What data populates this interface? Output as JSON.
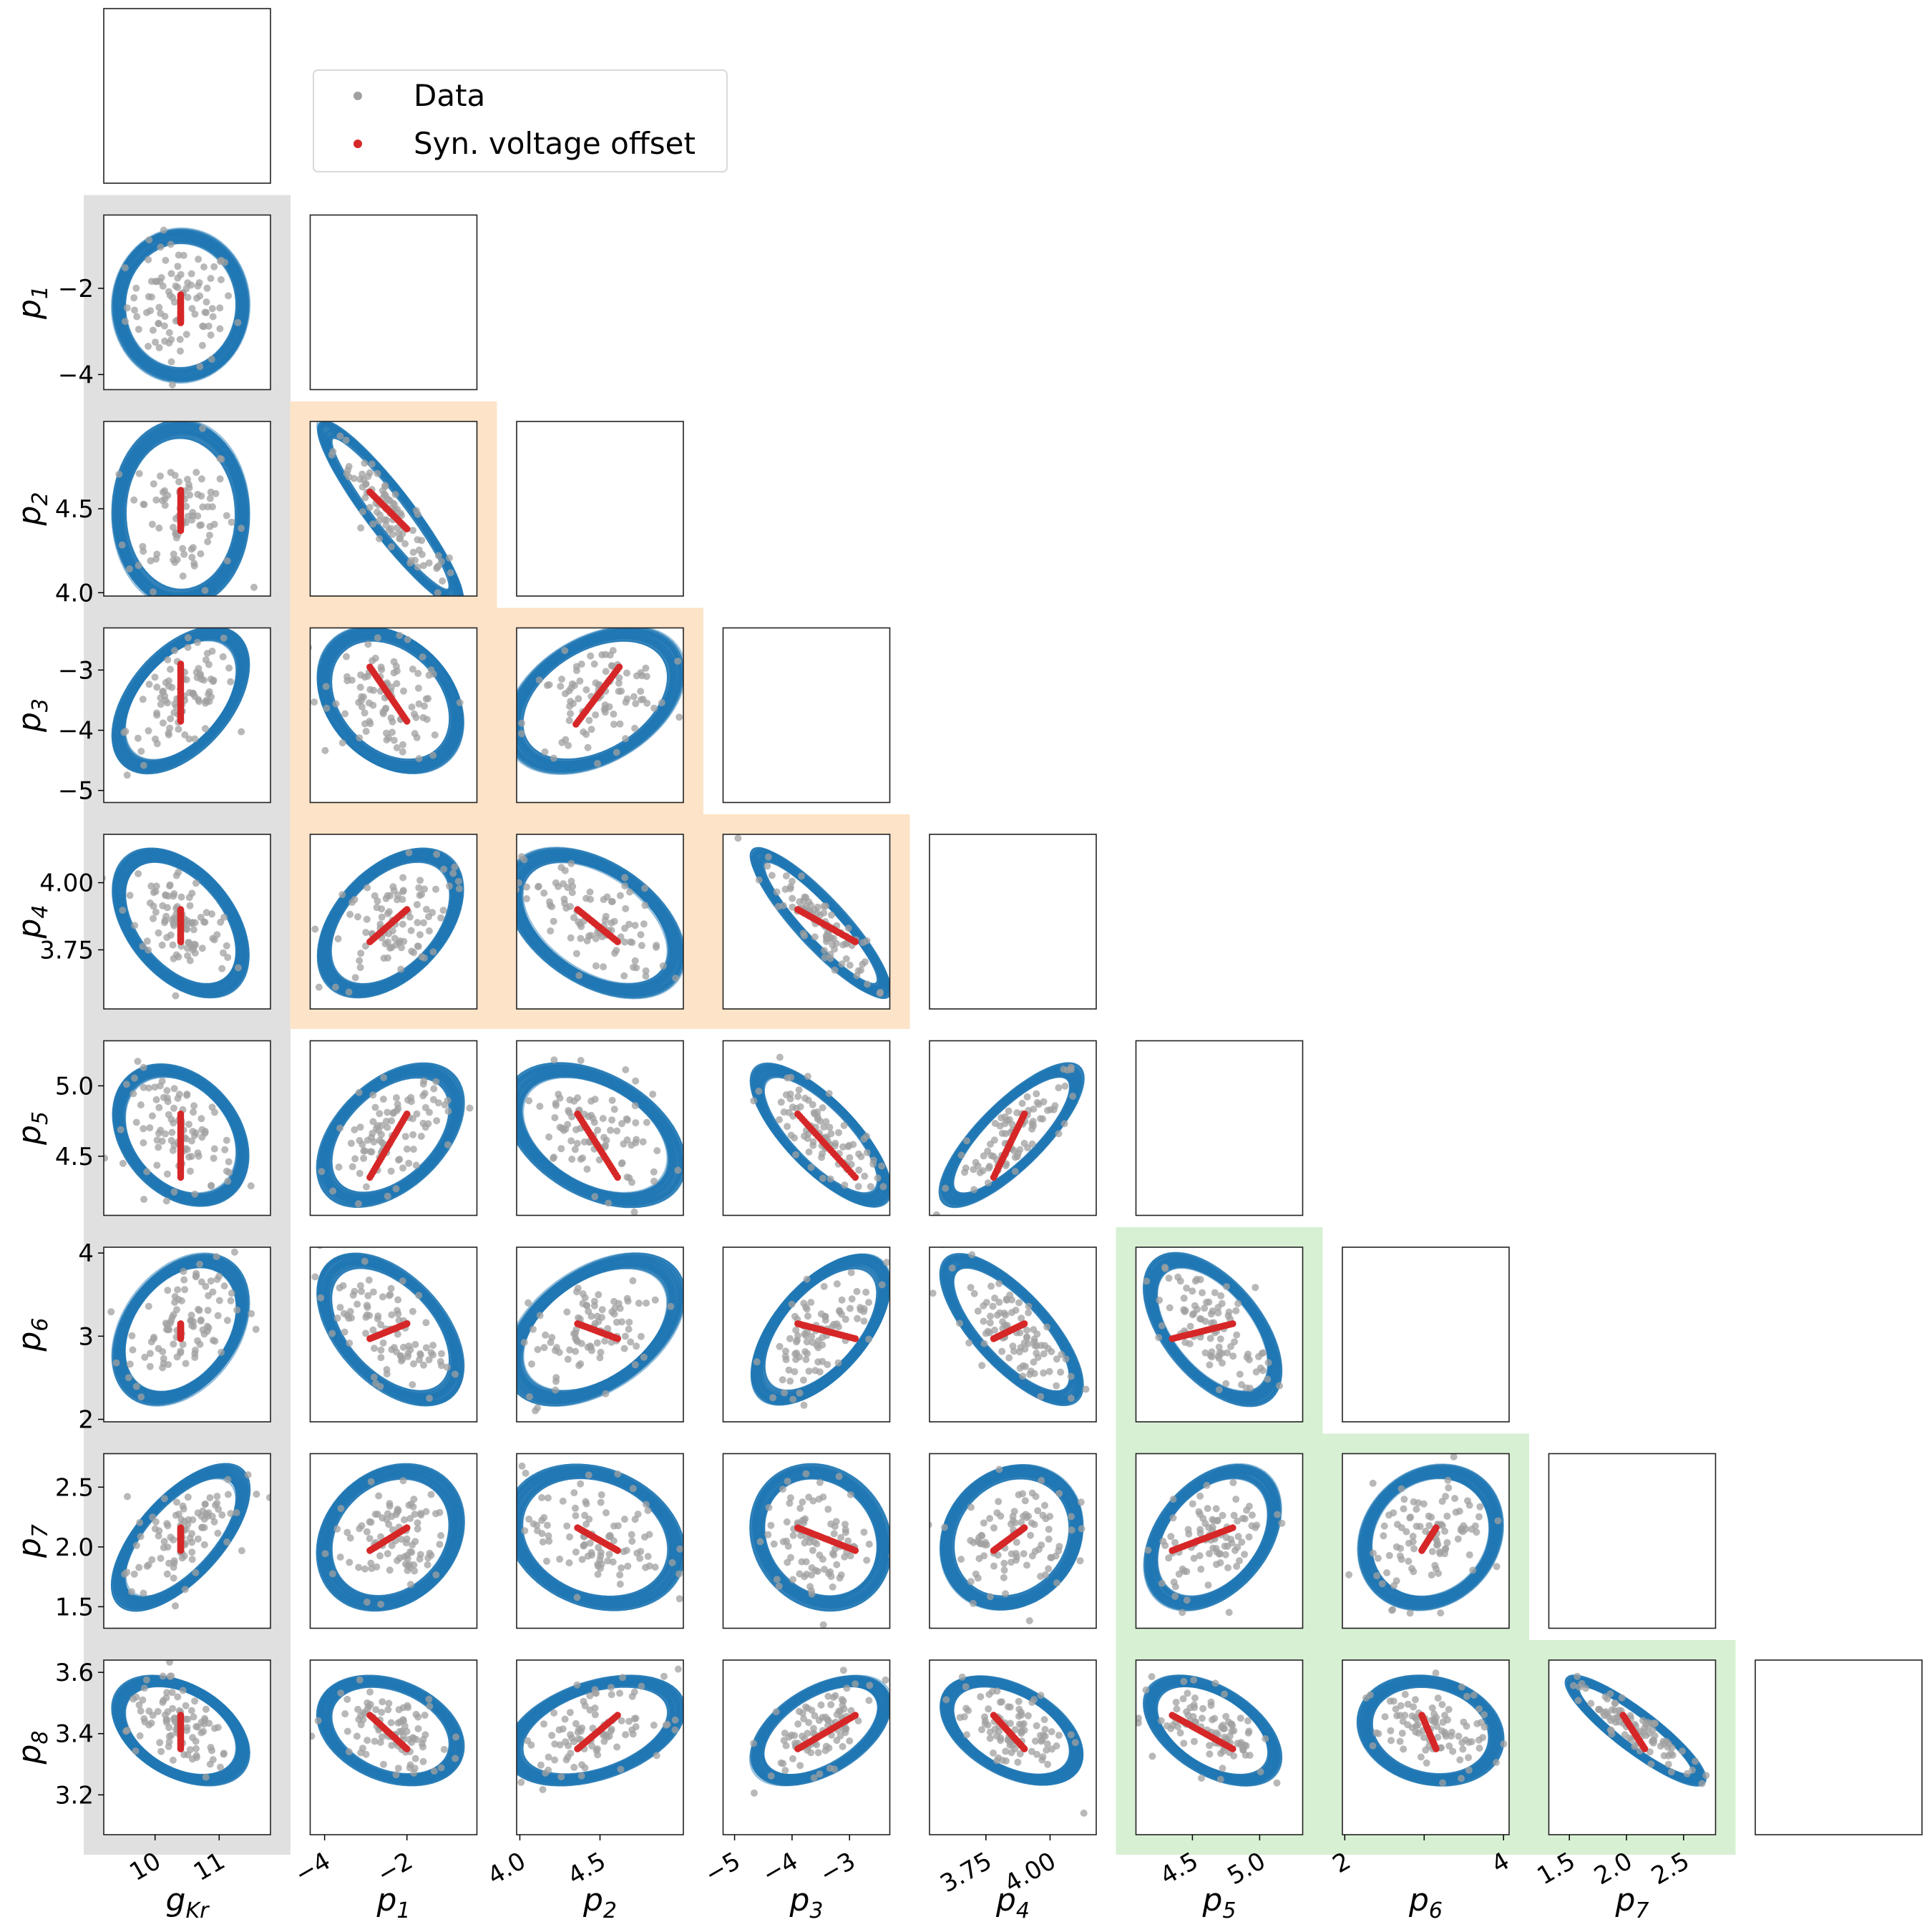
{
  "chart_data": {
    "type": "scatter",
    "layout": "corner-plot",
    "variables": [
      "gKr",
      "p1",
      "p2",
      "p3",
      "p4",
      "p5",
      "p6",
      "p7",
      "p8"
    ],
    "axis_labels": [
      {
        "main": "g",
        "sub": "Kr"
      },
      {
        "main": "p",
        "sub": "1"
      },
      {
        "main": "p",
        "sub": "2"
      },
      {
        "main": "p",
        "sub": "3"
      },
      {
        "main": "p",
        "sub": "4"
      },
      {
        "main": "p",
        "sub": "5"
      },
      {
        "main": "p",
        "sub": "6"
      },
      {
        "main": "p",
        "sub": "7"
      },
      {
        "main": "p",
        "sub": "8"
      }
    ],
    "ranges": [
      [
        9.2,
        11.8
      ],
      [
        -4.35,
        -0.3
      ],
      [
        3.98,
        5.02
      ],
      [
        -5.2,
        -2.3
      ],
      [
        3.53,
        4.18
      ],
      [
        4.08,
        5.32
      ],
      [
        1.97,
        4.07
      ],
      [
        1.32,
        2.78
      ],
      [
        3.07,
        3.64
      ]
    ],
    "ticks": [
      {
        "values": [
          10,
          11
        ],
        "labels": [
          "10",
          "11"
        ]
      },
      {
        "values": [
          -4,
          -2
        ],
        "labels": [
          "−4",
          "−2"
        ]
      },
      {
        "values": [
          4.0,
          4.5
        ],
        "labels": [
          "4.0",
          "4.5"
        ]
      },
      {
        "values": [
          -5,
          -4,
          -3
        ],
        "labels": [
          "−5",
          "−4",
          "−3"
        ]
      },
      {
        "values": [
          3.75,
          4.0
        ],
        "labels": [
          "3.75",
          "4.00"
        ]
      },
      {
        "values": [
          4.5,
          5.0
        ],
        "labels": [
          "4.5",
          "5.0"
        ]
      },
      {
        "values": [
          2,
          3,
          4
        ],
        "labels": [
          "2",
          "3",
          "4"
        ]
      },
      {
        "values": [
          1.5,
          2.0,
          2.5
        ],
        "labels": [
          "1.5",
          "2.0",
          "2.5"
        ]
      },
      {
        "values": [
          3.2,
          3.4,
          3.6
        ],
        "labels": [
          "3.2",
          "3.4",
          "3.6"
        ]
      }
    ],
    "bottom_tick_labels": [
      {
        "values": [
          10,
          11
        ],
        "labels": [
          "10",
          "11"
        ]
      },
      {
        "values": [
          -4,
          -2
        ],
        "labels": [
          "−4",
          "−2"
        ]
      },
      {
        "values": [
          4.0,
          4.5
        ],
        "labels": [
          "4.0",
          "4.5"
        ]
      },
      {
        "values": [
          -5,
          -4,
          -3
        ],
        "labels": [
          "−5",
          "−4",
          "−3"
        ]
      },
      {
        "values": [
          3.75,
          4.0
        ],
        "labels": [
          "3.75",
          "4.00"
        ]
      },
      {
        "values": [
          4.5,
          5.0
        ],
        "labels": [
          "4.5",
          "5.0"
        ]
      },
      {
        "values": [
          2,
          4
        ],
        "labels": [
          "2",
          "4"
        ]
      },
      {
        "values": [
          1.5,
          2.0,
          2.5
        ],
        "labels": [
          "1.5",
          "2.0",
          "2.5"
        ]
      }
    ],
    "left_tick_labels": [
      {
        "values": [
          -2,
          -4
        ],
        "labels": [
          "−2",
          "−4"
        ]
      },
      {
        "values": [
          4.5,
          4.0
        ],
        "labels": [
          "4.5",
          "4.0"
        ]
      },
      {
        "values": [
          -3,
          -4,
          -5
        ],
        "labels": [
          "−3",
          "−4",
          "−5"
        ]
      },
      {
        "values": [
          4.0,
          3.75
        ],
        "labels": [
          "4.00",
          "3.75"
        ]
      },
      {
        "values": [
          5.0,
          4.5
        ],
        "labels": [
          "5.0",
          "4.5"
        ]
      },
      {
        "values": [
          4,
          3,
          2
        ],
        "labels": [
          "4",
          "3",
          "2"
        ]
      },
      {
        "values": [
          2.5,
          2.0,
          1.5
        ],
        "labels": [
          "2.5",
          "2.0",
          "1.5"
        ]
      },
      {
        "values": [
          3.6,
          3.4,
          3.2
        ],
        "labels": [
          "3.6",
          "3.4",
          "3.2"
        ]
      }
    ],
    "means": [
      10.4,
      -2.4,
      4.47,
      -3.5,
      3.85,
      4.65,
      3.08,
      2.08,
      3.41
    ],
    "stds": [
      0.42,
      0.7,
      0.22,
      0.48,
      0.11,
      0.2,
      0.36,
      0.24,
      0.07
    ],
    "correlations": {
      "p1|gKr": 0.0,
      "p2|gKr": 0.0,
      "p2|p1": -0.92,
      "p3|gKr": 0.5,
      "p3|p1": -0.3,
      "p3|p2": 0.4,
      "p4|gKr": -0.45,
      "p4|p1": 0.45,
      "p4|p2": -0.45,
      "p4|p3": -0.9,
      "p5|gKr": -0.3,
      "p5|p1": 0.45,
      "p5|p2": -0.4,
      "p5|p3": -0.75,
      "p5|p4": 0.8,
      "p6|gKr": 0.35,
      "p6|p1": -0.5,
      "p6|p2": 0.45,
      "p6|p3": 0.6,
      "p6|p4": -0.75,
      "p6|p5": -0.55,
      "p7|gKr": 0.65,
      "p7|p1": 0.2,
      "p7|p2": -0.2,
      "p7|p3": -0.15,
      "p7|p4": 0.15,
      "p7|p5": 0.4,
      "p7|p6": 0.15,
      "p8|gKr": -0.4,
      "p8|p1": -0.3,
      "p8|p2": 0.4,
      "p8|p3": 0.5,
      "p8|p4": -0.45,
      "p8|p5": -0.5,
      "p8|p6": -0.15,
      "p8|p7": -0.9
    },
    "offset_segments": {
      "p1|gKr": {
        "x": [
          10.4,
          10.4
        ],
        "y": [
          -2.15,
          -2.8
        ]
      },
      "p2|gKr": {
        "x": [
          10.4,
          10.4
        ],
        "y": [
          4.61,
          4.37
        ]
      },
      "p2|p1": {
        "x": [
          -2.9,
          -2.0
        ],
        "y": [
          4.6,
          4.38
        ]
      },
      "p3|gKr": {
        "x": [
          10.4,
          10.4
        ],
        "y": [
          -2.9,
          -3.85
        ]
      },
      "p3|p1": {
        "x": [
          -2.9,
          -2.0
        ],
        "y": [
          -2.95,
          -3.85
        ]
      },
      "p3|p2": {
        "x": [
          4.35,
          4.62
        ],
        "y": [
          -3.9,
          -2.95
        ]
      },
      "p4|gKr": {
        "x": [
          10.4,
          10.4
        ],
        "y": [
          3.9,
          3.78
        ]
      },
      "p4|p1": {
        "x": [
          -2.9,
          -2.0
        ],
        "y": [
          3.78,
          3.9
        ]
      },
      "p4|p2": {
        "x": [
          4.36,
          4.61
        ],
        "y": [
          3.9,
          3.78
        ]
      },
      "p4|p3": {
        "x": [
          -3.9,
          -2.9
        ],
        "y": [
          3.9,
          3.78
        ]
      },
      "p5|gKr": {
        "x": [
          10.4,
          10.4
        ],
        "y": [
          4.8,
          4.35
        ]
      },
      "p5|p1": {
        "x": [
          -2.9,
          -2.0
        ],
        "y": [
          4.35,
          4.8
        ]
      },
      "p5|p2": {
        "x": [
          4.36,
          4.61
        ],
        "y": [
          4.8,
          4.35
        ]
      },
      "p5|p3": {
        "x": [
          -3.9,
          -2.9
        ],
        "y": [
          4.8,
          4.35
        ]
      },
      "p5|p4": {
        "x": [
          3.78,
          3.9
        ],
        "y": [
          4.35,
          4.8
        ]
      },
      "p6|gKr": {
        "x": [
          10.4,
          10.4
        ],
        "y": [
          3.15,
          2.97
        ]
      },
      "p6|p1": {
        "x": [
          -2.9,
          -2.0
        ],
        "y": [
          2.97,
          3.15
        ]
      },
      "p6|p2": {
        "x": [
          4.36,
          4.61
        ],
        "y": [
          3.15,
          2.97
        ]
      },
      "p6|p3": {
        "x": [
          -3.9,
          -2.9
        ],
        "y": [
          3.15,
          2.97
        ]
      },
      "p6|p4": {
        "x": [
          3.78,
          3.9
        ],
        "y": [
          2.97,
          3.15
        ]
      },
      "p6|p5": {
        "x": [
          4.35,
          4.8
        ],
        "y": [
          2.97,
          3.15
        ]
      },
      "p7|gKr": {
        "x": [
          10.4,
          10.4
        ],
        "y": [
          2.16,
          1.97
        ]
      },
      "p7|p1": {
        "x": [
          -2.9,
          -2.0
        ],
        "y": [
          1.97,
          2.16
        ]
      },
      "p7|p2": {
        "x": [
          4.36,
          4.61
        ],
        "y": [
          2.16,
          1.97
        ]
      },
      "p7|p3": {
        "x": [
          -3.9,
          -2.9
        ],
        "y": [
          2.16,
          1.97
        ]
      },
      "p7|p4": {
        "x": [
          3.78,
          3.9
        ],
        "y": [
          1.97,
          2.16
        ]
      },
      "p7|p5": {
        "x": [
          4.35,
          4.8
        ],
        "y": [
          1.97,
          2.16
        ]
      },
      "p7|p6": {
        "x": [
          2.97,
          3.15
        ],
        "y": [
          1.97,
          2.16
        ]
      },
      "p8|gKr": {
        "x": [
          10.4,
          10.4
        ],
        "y": [
          3.46,
          3.35
        ]
      },
      "p8|p1": {
        "x": [
          -2.9,
          -2.0
        ],
        "y": [
          3.46,
          3.35
        ]
      },
      "p8|p2": {
        "x": [
          4.36,
          4.61
        ],
        "y": [
          3.35,
          3.46
        ]
      },
      "p8|p3": {
        "x": [
          -3.9,
          -2.9
        ],
        "y": [
          3.35,
          3.46
        ]
      },
      "p8|p4": {
        "x": [
          3.78,
          3.9
        ],
        "y": [
          3.46,
          3.35
        ]
      },
      "p8|p5": {
        "x": [
          4.35,
          4.8
        ],
        "y": [
          3.46,
          3.35
        ]
      },
      "p8|p6": {
        "x": [
          2.97,
          3.15
        ],
        "y": [
          3.46,
          3.35
        ]
      },
      "p8|p7": {
        "x": [
          1.97,
          2.16
        ],
        "y": [
          3.46,
          3.35
        ]
      }
    },
    "highlight_regions": [
      {
        "color": "#e0e0e0",
        "column": 0
      },
      {
        "color": "#fde3c8",
        "columns": [
          1,
          4
        ],
        "rows": [
          2,
          4
        ]
      },
      {
        "color": "#d7f0d3",
        "columns": [
          5,
          8
        ],
        "rows": [
          6,
          8
        ]
      }
    ],
    "grid": false,
    "legend": {
      "position": "top-left",
      "entries": [
        {
          "label": "Data",
          "color": "#a0a0a0"
        },
        {
          "label": "Syn. voltage offset",
          "color": "#d62728"
        }
      ]
    }
  },
  "colors": {
    "ellipse": "#1f77b4",
    "data_points": "#a0a0a0",
    "offset": "#d62728"
  }
}
